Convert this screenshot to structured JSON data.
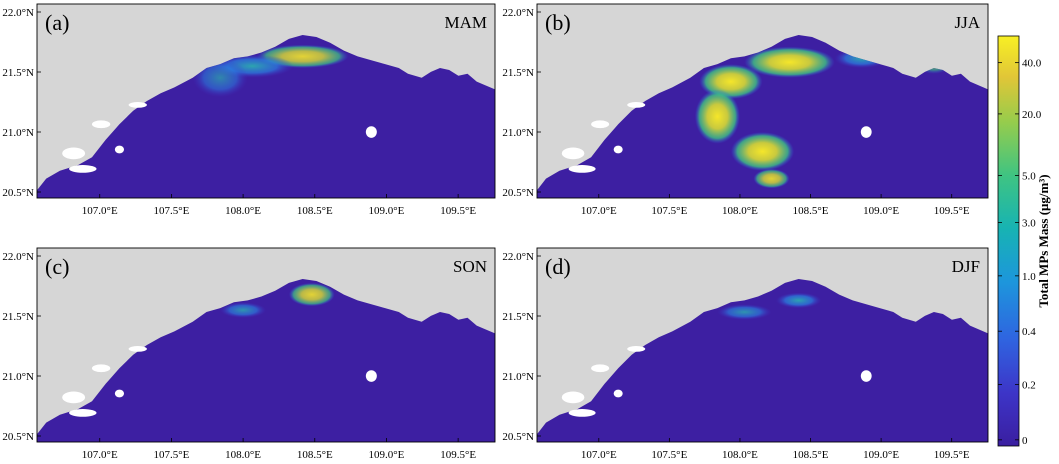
{
  "panels": [
    {
      "id": "a",
      "label": "(a)",
      "season": "MAM"
    },
    {
      "id": "b",
      "label": "(b)",
      "season": "JJA"
    },
    {
      "id": "c",
      "label": "(c)",
      "season": "SON"
    },
    {
      "id": "d",
      "label": "(d)",
      "season": "DJF"
    }
  ],
  "axes": {
    "lat_ticks": [
      "22.0°N",
      "21.5°N",
      "21.0°N",
      "20.5°N"
    ],
    "lon_ticks": [
      "107.0°E",
      "107.5°E",
      "108.0°E",
      "108.5°E",
      "109.0°E",
      "109.5°E"
    ]
  },
  "colorbar": {
    "label": "Total MPs Mass (μg/m³)",
    "tick_labels": [
      "40.0",
      "20.0",
      "5.0",
      "3.0",
      "1.0",
      "0.4",
      "0.2",
      "0"
    ],
    "colors": [
      "#3a1ea0",
      "#3d35c8",
      "#2f64e0",
      "#1d96dc",
      "#17b3b3",
      "#3fc482",
      "#96cc4c",
      "#e1c637",
      "#f8f024"
    ]
  },
  "map_colors": {
    "land": "#d6d6d6",
    "sea": "#3d1fa2"
  }
}
